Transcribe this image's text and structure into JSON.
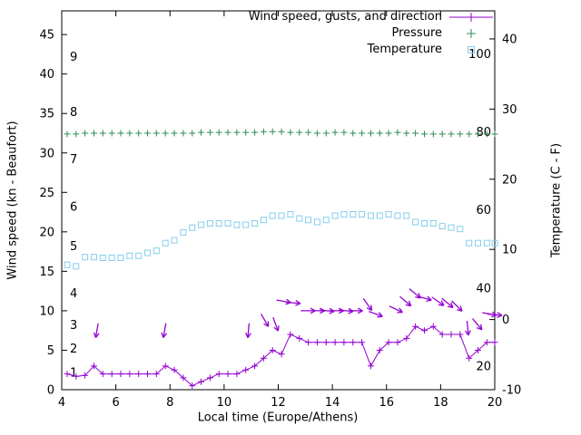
{
  "chart_data": {
    "type": "line",
    "title": "",
    "xlabel": "Local time (Europe/Athens)",
    "ylabel_left": "Wind speed (kn - Beaufort)",
    "ylabel_right": "Temperature (C - F)",
    "xlim": [
      4,
      20
    ],
    "ylim_left": [
      0,
      48
    ],
    "ylim_right": [
      -10,
      44
    ],
    "x_ticks": [
      4,
      6,
      8,
      10,
      12,
      14,
      16,
      18,
      20
    ],
    "y_ticks_left": [
      0,
      5,
      10,
      15,
      20,
      25,
      30,
      35,
      40,
      45
    ],
    "y_ticks_right": [
      -10,
      0,
      10,
      20,
      30,
      40
    ],
    "grid": false,
    "legend_position": "top-right-inside",
    "beaufort_scale_labels": [
      {
        "label": "1",
        "kn": 1
      },
      {
        "label": "2",
        "kn": 4
      },
      {
        "label": "3",
        "kn": 7
      },
      {
        "label": "4",
        "kn": 11
      },
      {
        "label": "5",
        "kn": 17
      },
      {
        "label": "6",
        "kn": 22
      },
      {
        "label": "7",
        "kn": 28
      },
      {
        "label": "8",
        "kn": 34
      },
      {
        "label": "9",
        "kn": 41
      }
    ],
    "fahrenheit_scale_labels": [
      {
        "label": "20",
        "celsius": -6.7
      },
      {
        "label": "40",
        "celsius": 4.4
      },
      {
        "label": "60",
        "celsius": 15.6
      },
      {
        "label": "80",
        "celsius": 26.7
      },
      {
        "label": "100",
        "celsius": 37.8
      }
    ],
    "x": [
      4.2,
      4.53,
      4.86,
      5.19,
      5.52,
      5.85,
      6.18,
      6.51,
      6.84,
      7.17,
      7.5,
      7.83,
      8.16,
      8.49,
      8.82,
      9.15,
      9.48,
      9.81,
      10.14,
      10.47,
      10.8,
      11.13,
      11.46,
      11.79,
      12.12,
      12.45,
      12.78,
      13.11,
      13.44,
      13.77,
      14.1,
      14.43,
      14.76,
      15.09,
      15.42,
      15.75,
      16.08,
      16.41,
      16.74,
      17.07,
      17.4,
      17.73,
      18.06,
      18.39,
      18.72,
      19.05,
      19.38,
      19.71,
      20
    ],
    "series": [
      {
        "name": "Wind speed, gusts, and direction",
        "axis": "left",
        "color": "#9400d3",
        "marker": "plus",
        "line": true,
        "values": [
          2,
          1.7,
          1.8,
          3,
          2,
          2,
          2,
          2,
          2,
          2,
          2,
          3,
          2.5,
          1.5,
          0.5,
          1,
          1.5,
          2,
          2,
          2,
          2.5,
          3,
          4,
          5,
          4.5,
          7,
          6.5,
          6,
          6,
          6,
          6,
          6,
          6,
          6,
          3,
          5,
          6,
          6,
          6.5,
          8,
          7.5,
          8,
          7,
          7,
          7,
          4,
          5,
          6,
          6
        ]
      },
      {
        "name": "Pressure",
        "axis": "left",
        "color": "#2e8b57",
        "marker": "plus",
        "line": false,
        "values": [
          32.4,
          32.4,
          32.5,
          32.5,
          32.5,
          32.5,
          32.5,
          32.5,
          32.5,
          32.5,
          32.5,
          32.5,
          32.5,
          32.5,
          32.5,
          32.6,
          32.6,
          32.6,
          32.6,
          32.6,
          32.6,
          32.6,
          32.7,
          32.7,
          32.7,
          32.6,
          32.6,
          32.6,
          32.5,
          32.5,
          32.6,
          32.6,
          32.5,
          32.5,
          32.5,
          32.5,
          32.5,
          32.6,
          32.5,
          32.5,
          32.4,
          32.4,
          32.4,
          32.4,
          32.4,
          32.4,
          32.4,
          32.4,
          32.4
        ]
      },
      {
        "name": "Temperature",
        "axis": "right",
        "color": "#87ceeb",
        "marker": "square",
        "line": false,
        "values": [
          7.8,
          7.6,
          8.9,
          8.9,
          8.8,
          8.8,
          8.8,
          9.1,
          9.1,
          9.5,
          9.8,
          10.9,
          11.3,
          12.4,
          13.1,
          13.5,
          13.7,
          13.7,
          13.7,
          13.5,
          13.5,
          13.7,
          14.2,
          14.8,
          14.8,
          15.0,
          14.4,
          14.2,
          13.9,
          14.2,
          14.8,
          15.0,
          15.0,
          15.0,
          14.8,
          14.8,
          15.0,
          14.8,
          14.8,
          13.9,
          13.7,
          13.7,
          13.3,
          13.1,
          12.9,
          10.9,
          10.9,
          10.9,
          10.9
        ]
      }
    ],
    "wind_direction_arrows": {
      "color": "#9400d3",
      "angle_units": "screen degrees clockwise from east",
      "points": [
        {
          "x": 5.3,
          "y": 7.5,
          "dir": 100
        },
        {
          "x": 7.8,
          "y": 7.5,
          "dir": 100
        },
        {
          "x": 10.9,
          "y": 7.5,
          "dir": 95
        },
        {
          "x": 11.5,
          "y": 8.8,
          "dir": 60
        },
        {
          "x": 11.9,
          "y": 8.3,
          "dir": 70
        },
        {
          "x": 12.2,
          "y": 11.2,
          "dir": 10
        },
        {
          "x": 12.55,
          "y": 11,
          "dir": 5
        },
        {
          "x": 13.1,
          "y": 10,
          "dir": 0
        },
        {
          "x": 13.45,
          "y": 10,
          "dir": 0
        },
        {
          "x": 13.8,
          "y": 10,
          "dir": 5
        },
        {
          "x": 14.15,
          "y": 10,
          "dir": 0
        },
        {
          "x": 14.5,
          "y": 10,
          "dir": 5
        },
        {
          "x": 14.85,
          "y": 10,
          "dir": 0
        },
        {
          "x": 15.3,
          "y": 10.8,
          "dir": 55
        },
        {
          "x": 15.6,
          "y": 9.6,
          "dir": 20
        },
        {
          "x": 16.35,
          "y": 10.2,
          "dir": 25
        },
        {
          "x": 16.7,
          "y": 11.2,
          "dir": 40
        },
        {
          "x": 17.05,
          "y": 12.2,
          "dir": 40
        },
        {
          "x": 17.4,
          "y": 11.6,
          "dir": 15
        },
        {
          "x": 17.9,
          "y": 11.2,
          "dir": 35
        },
        {
          "x": 18.25,
          "y": 11,
          "dir": 40
        },
        {
          "x": 18.6,
          "y": 10.6,
          "dir": 45
        },
        {
          "x": 19,
          "y": 7.8,
          "dir": 85
        },
        {
          "x": 19.35,
          "y": 8.3,
          "dir": 50
        },
        {
          "x": 19.8,
          "y": 9.6,
          "dir": 10
        },
        {
          "x": 20,
          "y": 9.5,
          "dir": 5
        }
      ]
    }
  }
}
